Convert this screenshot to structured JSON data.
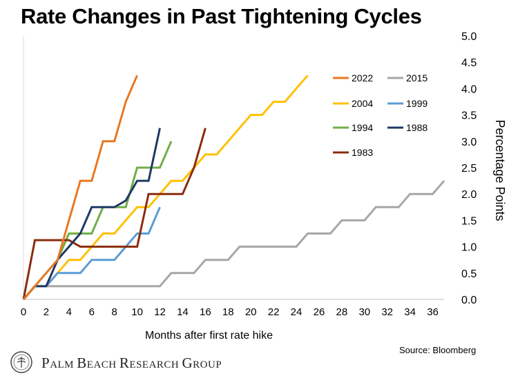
{
  "title": "Rate Changes in Past Tightening Cycles",
  "source": "Source: Bloomberg",
  "logo": {
    "text": "Palm Beach Research Group"
  },
  "chart_data": {
    "type": "line",
    "title": "Rate Changes in Past Tightening Cycles",
    "xlabel": "Months after first rate hike",
    "ylabel": "Percentage Points",
    "xlim": [
      0,
      37
    ],
    "ylim": [
      0,
      5
    ],
    "x_ticks": [
      0,
      2,
      4,
      6,
      8,
      10,
      12,
      14,
      16,
      18,
      20,
      22,
      24,
      26,
      28,
      30,
      32,
      34,
      36
    ],
    "y_ticks": [
      0.0,
      0.5,
      1.0,
      1.5,
      2.0,
      2.5,
      3.0,
      3.5,
      4.0,
      4.5,
      5.0
    ],
    "y_axis_side": "right",
    "grid": false,
    "legend_position": "top-right",
    "series": [
      {
        "name": "2022",
        "color": "#E87722",
        "x": [
          0,
          1,
          2,
          3,
          4,
          5,
          6,
          7,
          8,
          9,
          10
        ],
        "y": [
          0,
          0.25,
          0.5,
          0.75,
          1.5,
          2.25,
          2.25,
          3.0,
          3.0,
          3.75,
          4.25
        ]
      },
      {
        "name": "2015",
        "color": "#A6A6A6",
        "x": [
          0,
          1,
          2,
          3,
          4,
          5,
          6,
          7,
          8,
          9,
          10,
          11,
          12,
          13,
          14,
          15,
          16,
          17,
          18,
          19,
          20,
          21,
          22,
          23,
          24,
          25,
          26,
          27,
          28,
          29,
          30,
          31,
          32,
          33,
          34,
          35,
          36,
          37
        ],
        "y": [
          0,
          0.25,
          0.25,
          0.25,
          0.25,
          0.25,
          0.25,
          0.25,
          0.25,
          0.25,
          0.25,
          0.25,
          0.25,
          0.5,
          0.5,
          0.5,
          0.75,
          0.75,
          0.75,
          1.0,
          1.0,
          1.0,
          1.0,
          1.0,
          1.0,
          1.25,
          1.25,
          1.25,
          1.5,
          1.5,
          1.5,
          1.75,
          1.75,
          1.75,
          2.0,
          2.0,
          2.0,
          2.25
        ]
      },
      {
        "name": "2004",
        "color": "#FFC000",
        "x": [
          0,
          1,
          2,
          3,
          4,
          5,
          6,
          7,
          8,
          9,
          10,
          11,
          12,
          13,
          14,
          15,
          16,
          17,
          18,
          19,
          20,
          21,
          22,
          23,
          24,
          25
        ],
        "y": [
          0,
          0.25,
          0.25,
          0.5,
          0.75,
          0.75,
          1.0,
          1.25,
          1.25,
          1.5,
          1.75,
          1.75,
          2.0,
          2.25,
          2.25,
          2.5,
          2.75,
          2.75,
          3.0,
          3.25,
          3.5,
          3.5,
          3.75,
          3.75,
          4.0,
          4.25
        ]
      },
      {
        "name": "1999",
        "color": "#5B9BD5",
        "x": [
          0,
          1,
          2,
          3,
          4,
          5,
          6,
          7,
          8,
          9,
          10,
          11,
          12
        ],
        "y": [
          0,
          0.25,
          0.25,
          0.5,
          0.5,
          0.5,
          0.75,
          0.75,
          0.75,
          1.0,
          1.25,
          1.25,
          1.75
        ]
      },
      {
        "name": "1994",
        "color": "#70AD47",
        "x": [
          0,
          1,
          2,
          3,
          4,
          5,
          6,
          7,
          8,
          9,
          10,
          11,
          12,
          13
        ],
        "y": [
          0,
          0.25,
          0.5,
          0.75,
          1.25,
          1.25,
          1.25,
          1.75,
          1.75,
          1.75,
          2.5,
          2.5,
          2.5,
          3.0
        ]
      },
      {
        "name": "1988",
        "color": "#1F3864",
        "x": [
          0,
          1,
          2,
          3,
          4,
          5,
          6,
          7,
          8,
          9,
          10,
          11,
          12
        ],
        "y": [
          0,
          0.25,
          0.25,
          0.75,
          1.0,
          1.25,
          1.75,
          1.75,
          1.75,
          1.875,
          2.25,
          2.25,
          3.25
        ]
      },
      {
        "name": "1983",
        "color": "#8B2B0C",
        "x": [
          0,
          1,
          2,
          3,
          4,
          5,
          6,
          7,
          8,
          9,
          10,
          11,
          12,
          13,
          14,
          15,
          16
        ],
        "y": [
          0,
          1.125,
          1.125,
          1.125,
          1.125,
          1.0,
          1.0,
          1.0,
          1.0,
          1.0,
          1.0,
          2.0,
          2.0,
          2.0,
          2.0,
          2.5,
          3.25
        ]
      }
    ]
  }
}
